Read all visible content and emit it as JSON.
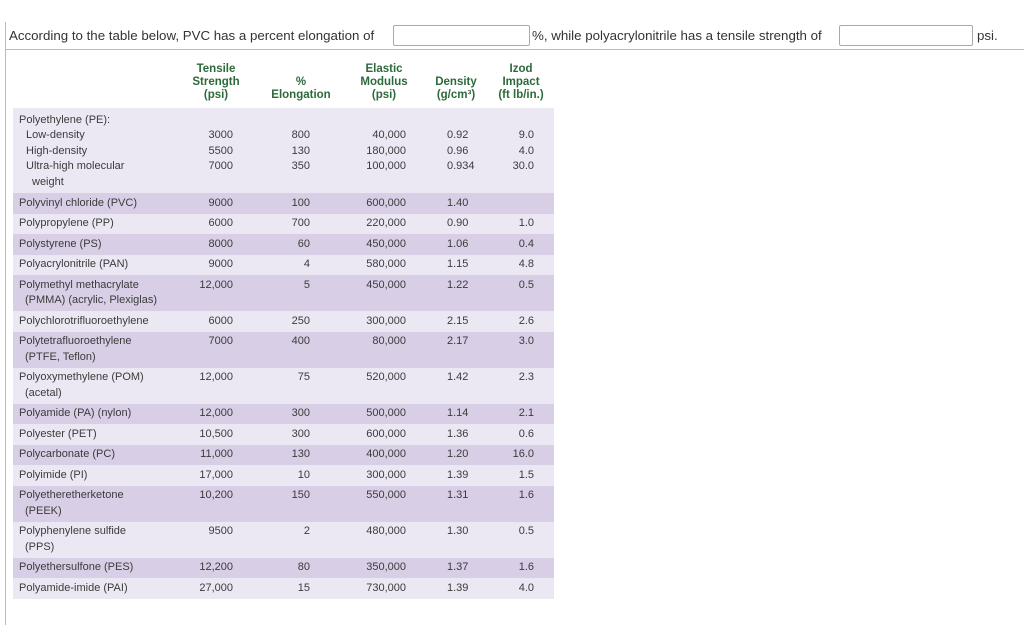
{
  "question": {
    "text_1": "According to the table below, PVC has a percent elongation of",
    "text_2": "%, while polyacrylonitrile has a tensile strength of",
    "text_3": "psi."
  },
  "table": {
    "headers": [
      [
        "Tensile",
        "Strength",
        "(psi)"
      ],
      [
        "%",
        "Elongation"
      ],
      [
        "Elastic",
        "Modulus",
        "(psi)"
      ],
      [
        "Density",
        "(g/cm³)"
      ],
      [
        "Izod",
        "Impact",
        "(ft lb/in.)"
      ]
    ],
    "group": {
      "title": "Polyethylene (PE):",
      "rows": [
        {
          "name": [
            "Low-density"
          ],
          "values": [
            "3000",
            "800",
            "40,000",
            "0.92",
            "9.0"
          ]
        },
        {
          "name": [
            "High-density"
          ],
          "values": [
            "5500",
            "130",
            "180,000",
            "0.96",
            "4.0"
          ]
        },
        {
          "name": [
            "Ultra-high molecular",
            "weight"
          ],
          "values": [
            "7000",
            "350",
            "100,000",
            "0.934",
            "30.0"
          ]
        }
      ]
    },
    "rows": [
      {
        "name": [
          "Polyvinyl chloride (PVC)"
        ],
        "values": [
          "9000",
          "100",
          "600,000",
          "1.40",
          null
        ]
      },
      {
        "name": [
          "Polypropylene (PP)"
        ],
        "values": [
          "6000",
          "700",
          "220,000",
          "0.90",
          "1.0"
        ]
      },
      {
        "name": [
          "Polystyrene (PS)"
        ],
        "values": [
          "8000",
          "60",
          "450,000",
          "1.06",
          "0.4"
        ]
      },
      {
        "name": [
          "Polyacrylonitrile (PAN)"
        ],
        "values": [
          "9000",
          "4",
          "580,000",
          "1.15",
          "4.8"
        ]
      },
      {
        "name": [
          "Polymethyl methacrylate",
          "(PMMA) (acrylic, Plexiglas)"
        ],
        "values": [
          "12,000",
          "5",
          "450,000",
          "1.22",
          "0.5"
        ]
      },
      {
        "name": [
          "Polychlorotrifluoroethylene"
        ],
        "values": [
          "6000",
          "250",
          "300,000",
          "2.15",
          "2.6"
        ]
      },
      {
        "name": [
          "Polytetrafluoroethylene",
          "(PTFE, Teflon)"
        ],
        "values": [
          "7000",
          "400",
          "80,000",
          "2.17",
          "3.0"
        ]
      },
      {
        "name": [
          "Polyoxymethylene (POM)",
          "(acetal)"
        ],
        "values": [
          "12,000",
          "75",
          "520,000",
          "1.42",
          "2.3"
        ]
      },
      {
        "name": [
          "Polyamide (PA) (nylon)"
        ],
        "values": [
          "12,000",
          "300",
          "500,000",
          "1.14",
          "2.1"
        ]
      },
      {
        "name": [
          "Polyester (PET)"
        ],
        "values": [
          "10,500",
          "300",
          "600,000",
          "1.36",
          "0.6"
        ]
      },
      {
        "name": [
          "Polycarbonate (PC)"
        ],
        "values": [
          "11,000",
          "130",
          "400,000",
          "1.20",
          "16.0"
        ]
      },
      {
        "name": [
          "Polyimide (PI)"
        ],
        "values": [
          "17,000",
          "10",
          "300,000",
          "1.39",
          "1.5"
        ]
      },
      {
        "name": [
          "Polyetheretherketone",
          "(PEEK)"
        ],
        "values": [
          "10,200",
          "150",
          "550,000",
          "1.31",
          "1.6"
        ]
      },
      {
        "name": [
          "Polyphenylene sulfide",
          "(PPS)"
        ],
        "values": [
          "9500",
          "2",
          "480,000",
          "1.30",
          "0.5"
        ]
      },
      {
        "name": [
          "Polyethersulfone (PES)"
        ],
        "values": [
          "12,200",
          "80",
          "350,000",
          "1.37",
          "1.6"
        ]
      },
      {
        "name": [
          "Polyamide-imide (PAI)"
        ],
        "values": [
          "27,000",
          "15",
          "730,000",
          "1.39",
          "4.0"
        ]
      }
    ]
  }
}
